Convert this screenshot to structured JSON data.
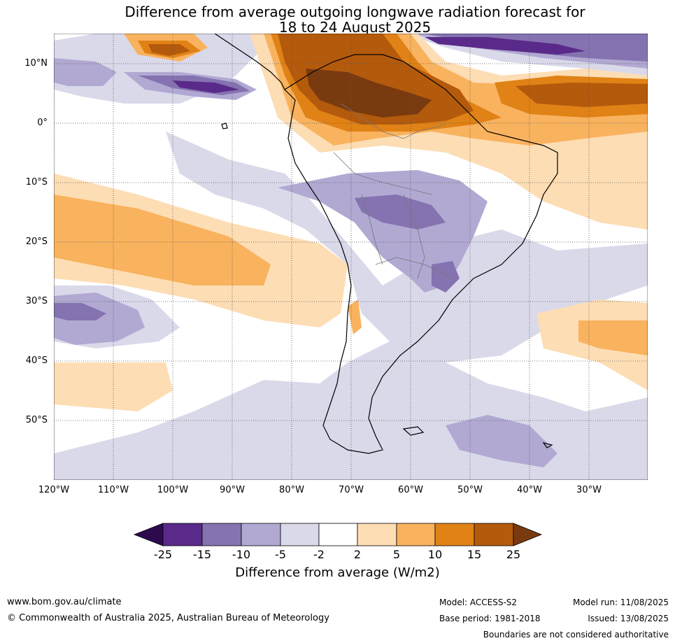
{
  "title_line1": "Difference from average outgoing longwave radiation forecast for",
  "title_line2": "18 to 24 August 2025",
  "latitude_labels": [
    "10°N",
    "0°",
    "10°S",
    "20°S",
    "30°S",
    "40°S",
    "50°S"
  ],
  "longitude_labels": [
    "120°W",
    "110°W",
    "100°W",
    "90°W",
    "80°W",
    "70°W",
    "60°W",
    "50°W",
    "40°W",
    "30°W"
  ],
  "map_extent": {
    "lon_min": -120,
    "lon_max": -20,
    "lat_min": -60,
    "lat_max": 15
  },
  "colorbar": {
    "ticks": [
      "-25",
      "-15",
      "-10",
      "-5",
      "-2",
      "2",
      "5",
      "10",
      "15",
      "25"
    ],
    "title": "Difference from average (W/m2)",
    "colors": [
      "#2d0a4e",
      "#5a2a8a",
      "#8473b0",
      "#b1a9d2",
      "#d9d9ea",
      "#ffffff",
      "#fdddb4",
      "#f9b25e",
      "#e08216",
      "#b45a0c",
      "#7a3a10"
    ]
  },
  "footer": {
    "website": "www.bom.gov.au/climate",
    "copyright": "© Commonwealth of Australia 2025, Australian Bureau of Meteorology",
    "model": "Model: ACCESS-S2",
    "base_period": "Base period: 1981-2018",
    "model_run": "Model run: 11/08/2025",
    "issued": "Issued: 13/08/2025",
    "disclaimer": "Boundaries are not considered authoritative"
  }
}
